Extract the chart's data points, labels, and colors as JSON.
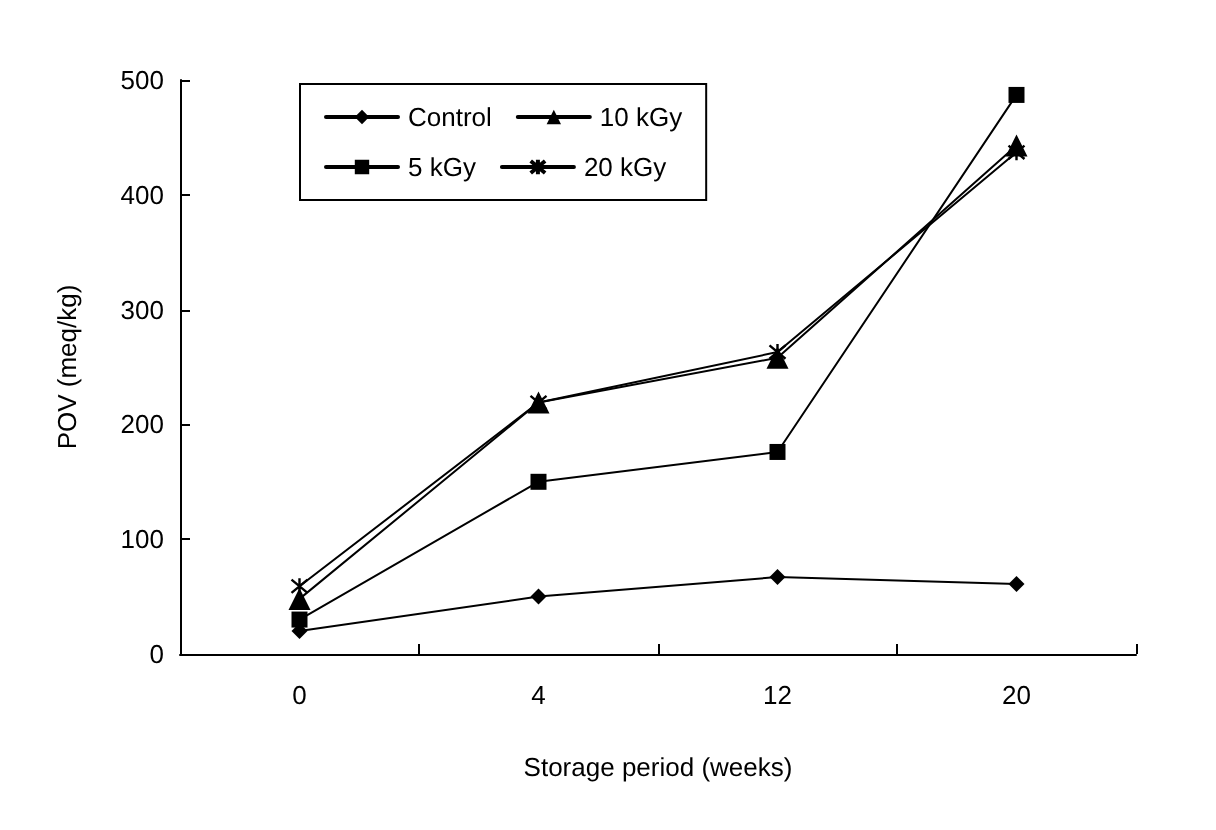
{
  "chart_data": {
    "type": "line",
    "xlabel": "Storage period (weeks)",
    "ylabel": "POV (meq/kg)",
    "categories": [
      "0",
      "4",
      "12",
      "20"
    ],
    "series": [
      {
        "name": "Control",
        "color": "#000000",
        "marker": "diamond",
        "values": [
          20,
          50,
          67,
          61
        ]
      },
      {
        "name": "5 kGy",
        "color": "#000000",
        "marker": "square",
        "values": [
          30,
          150,
          176,
          487
        ]
      },
      {
        "name": "10 kGy",
        "color": "#000000",
        "marker": "triangle",
        "values": [
          48,
          219,
          258,
          443
        ]
      },
      {
        "name": "20 kGy",
        "color": "#000000",
        "marker": "cross",
        "values": [
          59,
          219,
          263,
          437
        ]
      }
    ],
    "ylim": [
      0,
      500
    ],
    "yticks": [
      0,
      100,
      200,
      300,
      400,
      500
    ],
    "grid": false,
    "legend": "top left",
    "line_style": "solid"
  }
}
